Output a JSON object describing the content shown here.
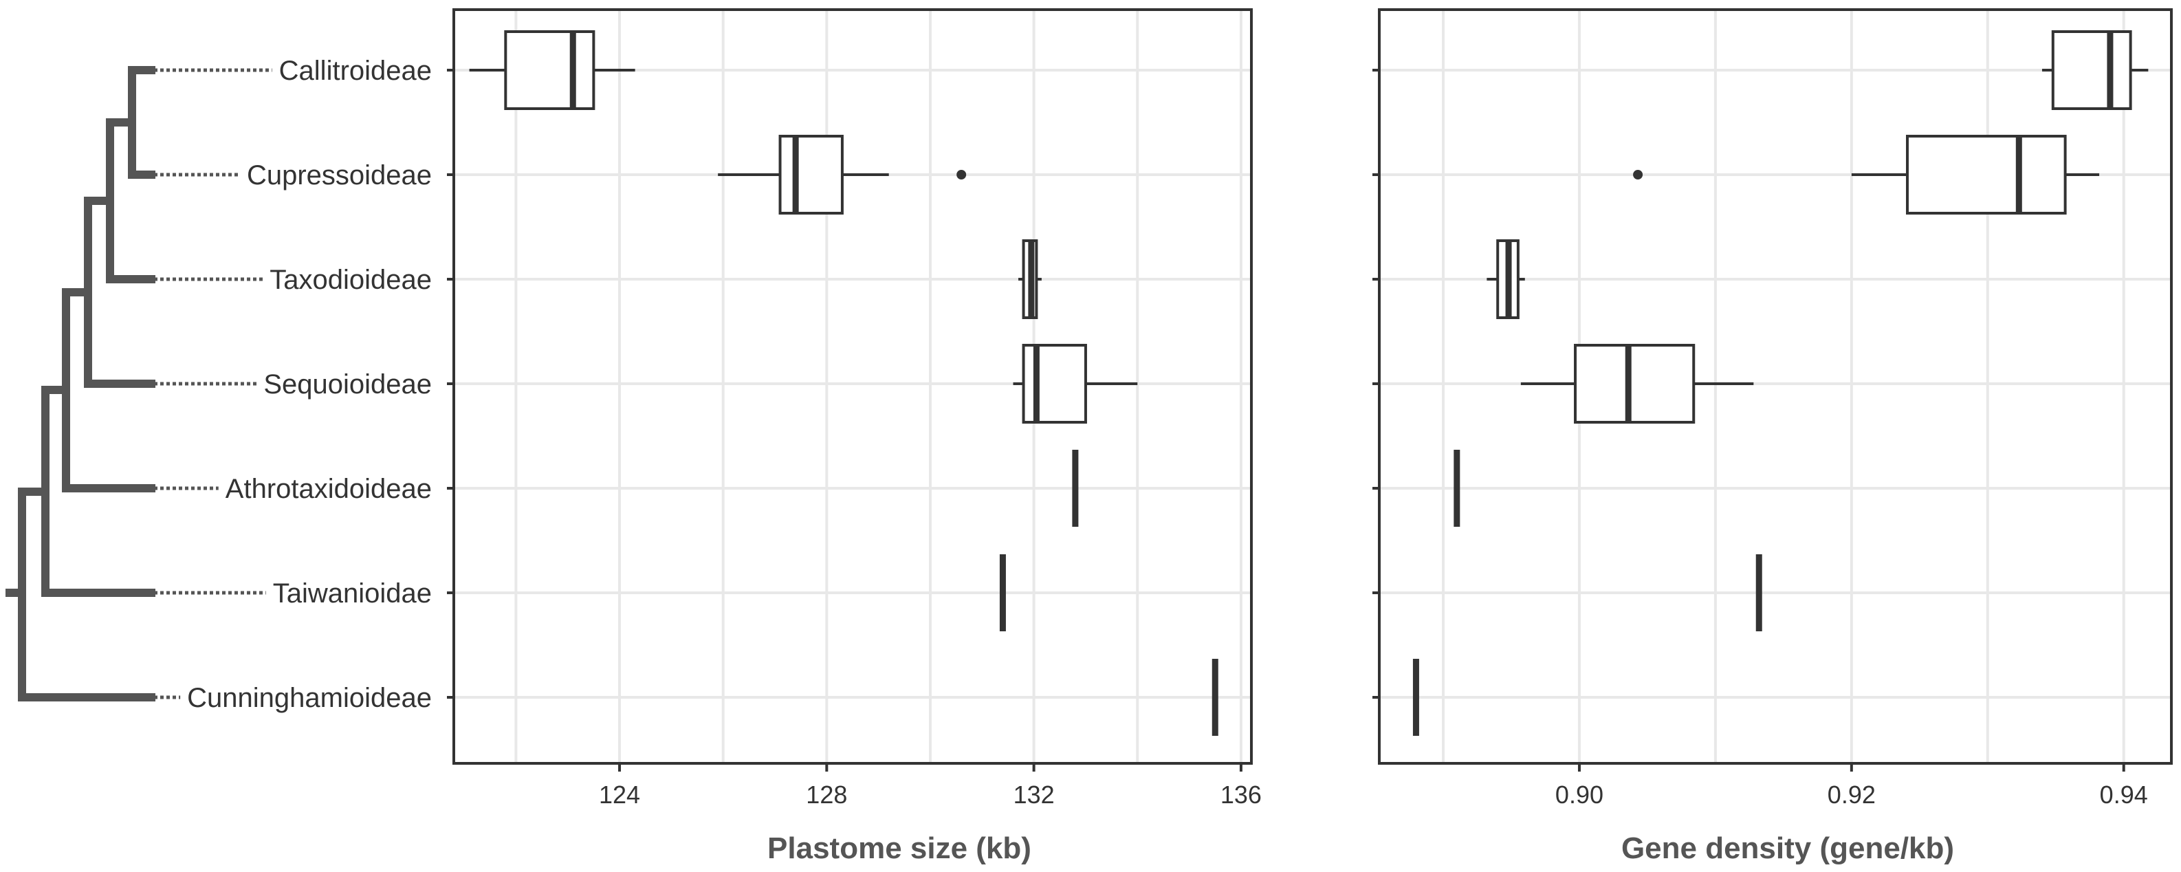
{
  "colors": {
    "tree": "#555555",
    "box_stroke": "#333333",
    "grid": "#e8e8e8",
    "axis_label": "#555555",
    "tick_label": "#333333",
    "background": "#ffffff"
  },
  "tree": {
    "leaves": [
      "Callitroideae",
      "Cupressoideae",
      "Taxodioideae",
      "Sequoioideae",
      "Athrotaxidoideae",
      "Taiwanioidae",
      "Cunninghamioideae"
    ]
  },
  "chart_data": [
    {
      "type": "boxplot",
      "orientation": "horizontal",
      "title": "",
      "xlabel": "Plastome size (kb)",
      "ylabel": "",
      "xlim": [
        120.8,
        136.2
      ],
      "xticks": [
        124,
        128,
        132,
        136
      ],
      "xtick_labels": [
        "124",
        "128",
        "132",
        "136"
      ],
      "grid": true,
      "categories": [
        "Callitroideae",
        "Cupressoideae",
        "Taxodioideae",
        "Sequoioideae",
        "Athrotaxidoideae",
        "Taiwanioidae",
        "Cunninghamioideae"
      ],
      "boxes": [
        {
          "category": "Callitroideae",
          "whisker_low": 121.1,
          "q1": 121.8,
          "median": 123.1,
          "q3": 123.5,
          "whisker_high": 124.3,
          "outliers": []
        },
        {
          "category": "Cupressoideae",
          "whisker_low": 125.9,
          "q1": 127.1,
          "median": 127.4,
          "q3": 128.3,
          "whisker_high": 129.2,
          "outliers": [
            130.6
          ]
        },
        {
          "category": "Taxodioideae",
          "whisker_low": 131.7,
          "q1": 131.8,
          "median": 131.95,
          "q3": 132.05,
          "whisker_high": 132.15,
          "outliers": []
        },
        {
          "category": "Sequoioideae",
          "whisker_low": 131.6,
          "q1": 131.8,
          "median": 132.05,
          "q3": 133.0,
          "whisker_high": 134.0,
          "outliers": []
        },
        {
          "category": "Athrotaxidoideae",
          "whisker_low": 132.8,
          "q1": 132.8,
          "median": 132.8,
          "q3": 132.8,
          "whisker_high": 132.8,
          "outliers": []
        },
        {
          "category": "Taiwanioidae",
          "whisker_low": 131.4,
          "q1": 131.4,
          "median": 131.4,
          "q3": 131.4,
          "whisker_high": 131.4,
          "outliers": []
        },
        {
          "category": "Cunninghamioideae",
          "whisker_low": 135.5,
          "q1": 135.5,
          "median": 135.5,
          "q3": 135.5,
          "whisker_high": 135.5,
          "outliers": []
        }
      ]
    },
    {
      "type": "boxplot",
      "orientation": "horizontal",
      "title": "",
      "xlabel": "Gene density (gene/kb)",
      "ylabel": "",
      "xlim": [
        0.8853,
        0.9435
      ],
      "xticks": [
        0.9,
        0.92,
        0.94
      ],
      "xtick_labels": [
        "0.90",
        "0.92",
        "0.94"
      ],
      "grid": true,
      "categories": [
        "Callitroideae",
        "Cupressoideae",
        "Taxodioideae",
        "Sequoioideae",
        "Athrotaxidoideae",
        "Taiwanioidae",
        "Cunninghamioideae"
      ],
      "boxes": [
        {
          "category": "Callitroideae",
          "whisker_low": 0.934,
          "q1": 0.9348,
          "median": 0.939,
          "q3": 0.9405,
          "whisker_high": 0.9418,
          "outliers": []
        },
        {
          "category": "Cupressoideae",
          "whisker_low": 0.92,
          "q1": 0.9241,
          "median": 0.9323,
          "q3": 0.9357,
          "whisker_high": 0.9382,
          "outliers": [
            0.9043
          ]
        },
        {
          "category": "Taxodioideae",
          "whisker_low": 0.8932,
          "q1": 0.894,
          "median": 0.8948,
          "q3": 0.8955,
          "whisker_high": 0.896,
          "outliers": []
        },
        {
          "category": "Sequoioideae",
          "whisker_low": 0.8957,
          "q1": 0.8997,
          "median": 0.9036,
          "q3": 0.9084,
          "whisker_high": 0.9128,
          "outliers": []
        },
        {
          "category": "Athrotaxidoideae",
          "whisker_low": 0.891,
          "q1": 0.891,
          "median": 0.891,
          "q3": 0.891,
          "whisker_high": 0.891,
          "outliers": []
        },
        {
          "category": "Taiwanioidae",
          "whisker_low": 0.9132,
          "q1": 0.9132,
          "median": 0.9132,
          "q3": 0.9132,
          "whisker_high": 0.9132,
          "outliers": []
        },
        {
          "category": "Cunninghamioideae",
          "whisker_low": 0.888,
          "q1": 0.888,
          "median": 0.888,
          "q3": 0.888,
          "whisker_high": 0.888,
          "outliers": []
        }
      ]
    }
  ]
}
